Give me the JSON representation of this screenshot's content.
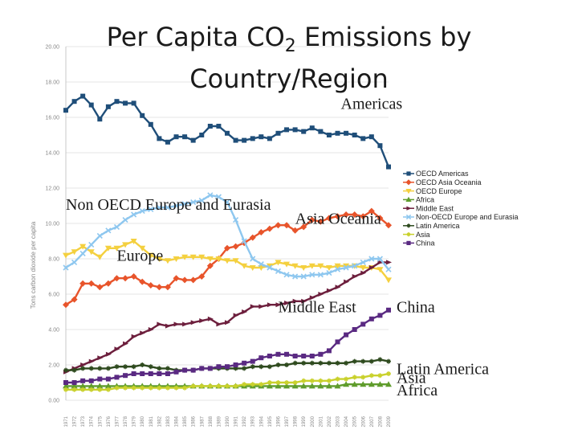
{
  "title": {
    "main": "Per Capita CO",
    "sub": "2",
    "rest": " Emissions by",
    "line2": "Country/Region"
  },
  "chart_data": {
    "type": "line",
    "title": "Per Capita CO2 Emissions by Country/Region",
    "ylabel": "Tons carbon dioxide per capita",
    "xlabel": "",
    "ylim": [
      0,
      20
    ],
    "yticks": [
      "0.00",
      "2.00",
      "4.00",
      "6.00",
      "8.00",
      "10.00",
      "12.00",
      "14.00",
      "16.00",
      "18.00",
      "20.00"
    ],
    "x": [
      "1971",
      "1972",
      "1973",
      "1974",
      "1975",
      "1976",
      "1977",
      "1978",
      "1979",
      "1980",
      "1981",
      "1982",
      "1983",
      "1984",
      "1985",
      "1986",
      "1987",
      "1988",
      "1989",
      "1990",
      "1991",
      "1992",
      "1993",
      "1994",
      "1995",
      "1996",
      "1997",
      "1998",
      "1999",
      "2000",
      "2001",
      "2002",
      "2003",
      "2004",
      "2005",
      "2006",
      "2007",
      "2008",
      "2009"
    ],
    "legend_position": "right",
    "series": [
      {
        "name": "OECD Americas",
        "color": "#1f4e79",
        "marker": "square",
        "values": [
          16.4,
          16.9,
          17.2,
          16.7,
          15.9,
          16.6,
          16.9,
          16.8,
          16.8,
          16.1,
          15.6,
          14.8,
          14.6,
          14.9,
          14.9,
          14.7,
          15.0,
          15.5,
          15.5,
          15.1,
          14.7,
          14.7,
          14.8,
          14.9,
          14.8,
          15.1,
          15.3,
          15.3,
          15.2,
          15.4,
          15.2,
          15.0,
          15.1,
          15.1,
          15.0,
          14.8,
          14.9,
          14.4,
          13.2
        ]
      },
      {
        "name": "OECD Asia Oceania",
        "color": "#e8542b",
        "marker": "diamond",
        "values": [
          5.4,
          5.7,
          6.6,
          6.6,
          6.4,
          6.6,
          6.9,
          6.9,
          7.0,
          6.7,
          6.5,
          6.4,
          6.4,
          6.9,
          6.8,
          6.8,
          7.0,
          7.6,
          8.0,
          8.6,
          8.7,
          8.9,
          9.2,
          9.5,
          9.7,
          9.9,
          9.9,
          9.6,
          9.8,
          10.2,
          10.1,
          10.3,
          10.4,
          10.5,
          10.5,
          10.4,
          10.7,
          10.3,
          9.9
        ]
      },
      {
        "name": "OECD Europe",
        "color": "#f4d03f",
        "marker": "triangle-down",
        "values": [
          8.2,
          8.4,
          8.7,
          8.4,
          8.1,
          8.6,
          8.6,
          8.8,
          9.0,
          8.6,
          8.2,
          8.0,
          7.9,
          8.0,
          8.1,
          8.1,
          8.1,
          8.0,
          8.0,
          7.9,
          7.9,
          7.6,
          7.5,
          7.5,
          7.6,
          7.8,
          7.7,
          7.6,
          7.5,
          7.6,
          7.6,
          7.5,
          7.6,
          7.6,
          7.6,
          7.5,
          7.5,
          7.4,
          6.8
        ]
      },
      {
        "name": "Africa",
        "color": "#5f9c2c",
        "marker": "triangle",
        "values": [
          0.8,
          0.8,
          0.8,
          0.8,
          0.8,
          0.8,
          0.8,
          0.8,
          0.8,
          0.8,
          0.8,
          0.8,
          0.8,
          0.8,
          0.8,
          0.8,
          0.8,
          0.8,
          0.8,
          0.8,
          0.8,
          0.8,
          0.8,
          0.8,
          0.8,
          0.8,
          0.8,
          0.8,
          0.8,
          0.8,
          0.8,
          0.8,
          0.8,
          0.9,
          0.9,
          0.9,
          0.9,
          0.9,
          0.9
        ]
      },
      {
        "name": "Middle East",
        "color": "#6d1f3d",
        "marker": "arrow",
        "values": [
          1.6,
          1.8,
          2.0,
          2.2,
          2.4,
          2.6,
          2.9,
          3.2,
          3.6,
          3.8,
          4.0,
          4.3,
          4.2,
          4.3,
          4.3,
          4.4,
          4.5,
          4.6,
          4.3,
          4.4,
          4.8,
          5.0,
          5.3,
          5.3,
          5.4,
          5.4,
          5.5,
          5.6,
          5.6,
          5.8,
          6.0,
          6.2,
          6.4,
          6.7,
          7.0,
          7.2,
          7.5,
          7.8,
          7.8
        ]
      },
      {
        "name": "Non-OECD Europe and Eurasia",
        "color": "#8ec7ef",
        "marker": "x",
        "values": [
          7.5,
          7.8,
          8.3,
          8.8,
          9.3,
          9.6,
          9.8,
          10.2,
          10.5,
          10.7,
          10.8,
          10.9,
          10.9,
          11.0,
          11.1,
          11.2,
          11.3,
          11.6,
          11.5,
          11.2,
          10.2,
          9.0,
          8.0,
          7.7,
          7.5,
          7.3,
          7.1,
          7.0,
          7.0,
          7.1,
          7.1,
          7.2,
          7.4,
          7.5,
          7.6,
          7.8,
          8.0,
          8.0,
          7.4
        ]
      },
      {
        "name": "Latin America",
        "color": "#2e4a1e",
        "marker": "star",
        "values": [
          1.7,
          1.7,
          1.8,
          1.8,
          1.8,
          1.8,
          1.9,
          1.9,
          1.9,
          2.0,
          1.9,
          1.8,
          1.8,
          1.7,
          1.7,
          1.7,
          1.8,
          1.8,
          1.8,
          1.8,
          1.8,
          1.8,
          1.9,
          1.9,
          1.9,
          2.0,
          2.0,
          2.1,
          2.1,
          2.1,
          2.1,
          2.1,
          2.1,
          2.1,
          2.2,
          2.2,
          2.2,
          2.3,
          2.2
        ]
      },
      {
        "name": "Asia",
        "color": "#c9d12c",
        "marker": "star",
        "values": [
          0.6,
          0.6,
          0.6,
          0.6,
          0.6,
          0.6,
          0.7,
          0.7,
          0.7,
          0.7,
          0.7,
          0.7,
          0.7,
          0.7,
          0.7,
          0.8,
          0.8,
          0.8,
          0.8,
          0.8,
          0.8,
          0.9,
          0.9,
          0.9,
          1.0,
          1.0,
          1.0,
          1.0,
          1.1,
          1.1,
          1.1,
          1.1,
          1.2,
          1.2,
          1.3,
          1.3,
          1.4,
          1.4,
          1.5
        ]
      },
      {
        "name": "China",
        "color": "#5a2a82",
        "marker": "square",
        "values": [
          1.0,
          1.0,
          1.1,
          1.1,
          1.2,
          1.2,
          1.3,
          1.4,
          1.5,
          1.5,
          1.5,
          1.5,
          1.5,
          1.6,
          1.7,
          1.7,
          1.8,
          1.8,
          1.9,
          1.9,
          2.0,
          2.1,
          2.2,
          2.4,
          2.5,
          2.6,
          2.6,
          2.5,
          2.5,
          2.5,
          2.6,
          2.8,
          3.3,
          3.7,
          4.0,
          4.3,
          4.6,
          4.8,
          5.1
        ]
      }
    ],
    "annotations": [
      {
        "id": "americas",
        "text": "Americas",
        "x": "2007",
        "y": 16.8,
        "anchor": "middle"
      },
      {
        "id": "non-oecd",
        "text": "Non OECD Europe and Eurasia",
        "x": "1971",
        "y": 11.1,
        "anchor": "start"
      },
      {
        "id": "asia-oceania",
        "text": "Asia Oceania",
        "x": "1998",
        "y": 10.3,
        "anchor": "start"
      },
      {
        "id": "europe",
        "text": "Europe",
        "x": "1977",
        "y": 8.2,
        "anchor": "start"
      },
      {
        "id": "middle-east",
        "text": "Middle East",
        "x": "1996",
        "y": 5.3,
        "anchor": "start"
      },
      {
        "id": "china",
        "text": "China",
        "x": "2009",
        "y": 5.3,
        "anchor": "start"
      },
      {
        "id": "latin-america",
        "text": "Latin America",
        "x": "2009",
        "y": 1.8,
        "anchor": "start"
      },
      {
        "id": "asia",
        "text": "Asia",
        "x": "2009",
        "y": 1.3,
        "anchor": "start"
      },
      {
        "id": "africa",
        "text": "Africa",
        "x": "2009",
        "y": 0.6,
        "anchor": "start"
      }
    ]
  }
}
